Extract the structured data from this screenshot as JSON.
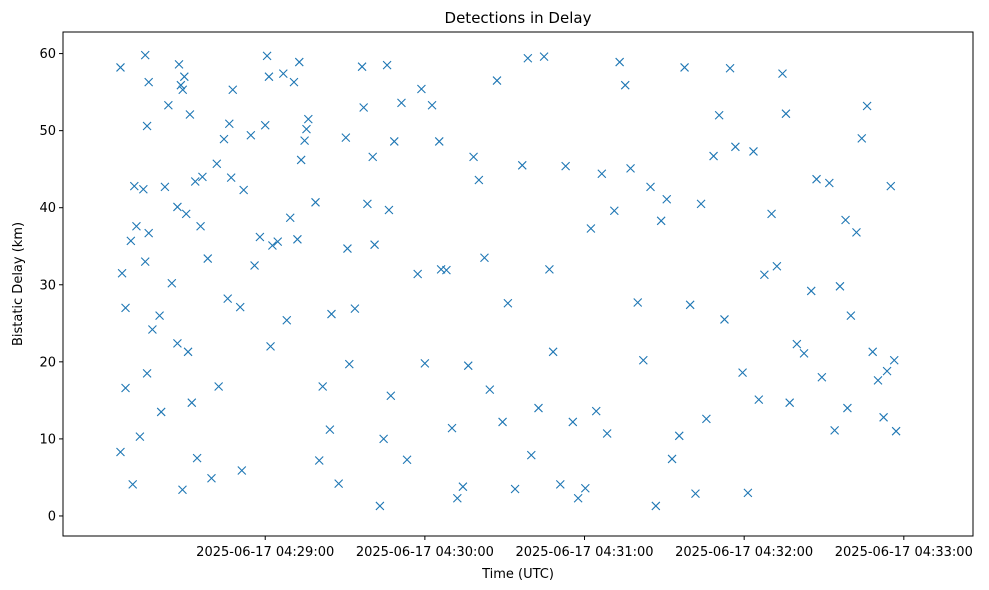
{
  "chart_data": {
    "type": "scatter",
    "title": "Detections in Delay",
    "xlabel": "Time (UTC)",
    "ylabel": "Bistatic Delay (km)",
    "marker": "x",
    "color": "#1f77b4",
    "grid": false,
    "xlim": [
      "2025-06-17T04:27:44",
      "2025-06-17T04:33:26"
    ],
    "ylim": [
      -2.6,
      62.8
    ],
    "x_ticks": [
      {
        "t": "2025-06-17T04:29:00",
        "label": "2025-06-17 04:29:00"
      },
      {
        "t": "2025-06-17T04:30:00",
        "label": "2025-06-17 04:30:00"
      },
      {
        "t": "2025-06-17T04:31:00",
        "label": "2025-06-17 04:31:00"
      },
      {
        "t": "2025-06-17T04:32:00",
        "label": "2025-06-17 04:32:00"
      },
      {
        "t": "2025-06-17T04:33:00",
        "label": "2025-06-17 04:33:00"
      }
    ],
    "y_ticks": [
      0,
      10,
      20,
      30,
      40,
      50,
      60
    ],
    "points": [
      [
        "2025-06-17T04:28:05.6",
        58.2
      ],
      [
        "2025-06-17T04:28:06.2",
        31.5
      ],
      [
        "2025-06-17T04:28:07.5",
        27.0
      ],
      [
        "2025-06-17T04:28:09.5",
        35.7
      ],
      [
        "2025-06-17T04:28:11.6",
        37.6
      ],
      [
        "2025-06-17T04:28:05.6",
        8.3
      ],
      [
        "2025-06-17T04:28:07.5",
        16.6
      ],
      [
        "2025-06-17T04:28:10.2",
        4.1
      ],
      [
        "2025-06-17T04:28:12.9",
        10.3
      ],
      [
        "2025-06-17T04:28:15.6",
        18.5
      ],
      [
        "2025-06-17T04:28:10.8",
        42.8
      ],
      [
        "2025-06-17T04:28:14.2",
        42.4
      ],
      [
        "2025-06-17T04:28:14.9",
        33.0
      ],
      [
        "2025-06-17T04:28:16.2",
        36.7
      ],
      [
        "2025-06-17T04:28:17.6",
        24.2
      ],
      [
        "2025-06-17T04:28:14.9",
        59.8
      ],
      [
        "2025-06-17T04:28:16.2",
        56.3
      ],
      [
        "2025-06-17T04:28:15.6",
        50.6
      ],
      [
        "2025-06-17T04:28:20.3",
        26.0
      ],
      [
        "2025-06-17T04:28:20.9",
        13.5
      ],
      [
        "2025-06-17T04:28:22.3",
        42.7
      ],
      [
        "2025-06-17T04:28:23.6",
        53.3
      ],
      [
        "2025-06-17T04:28:24.9",
        30.2
      ],
      [
        "2025-06-17T04:28:27.0",
        22.4
      ],
      [
        "2025-06-17T04:28:27.6",
        58.6
      ],
      [
        "2025-06-17T04:28:28.3",
        55.9
      ],
      [
        "2025-06-17T04:28:29.0",
        55.3
      ],
      [
        "2025-06-17T04:28:29.6",
        57.0
      ],
      [
        "2025-06-17T04:28:31.7",
        52.1
      ],
      [
        "2025-06-17T04:28:32.4",
        14.7
      ],
      [
        "2025-06-17T04:28:27.0",
        40.1
      ],
      [
        "2025-06-17T04:28:28.9",
        3.4
      ],
      [
        "2025-06-17T04:28:30.3",
        39.2
      ],
      [
        "2025-06-17T04:28:31.0",
        21.3
      ],
      [
        "2025-06-17T04:28:33.7",
        43.4
      ],
      [
        "2025-06-17T04:28:34.4",
        7.5
      ],
      [
        "2025-06-17T04:28:35.7",
        37.6
      ],
      [
        "2025-06-17T04:28:36.4",
        44.0
      ],
      [
        "2025-06-17T04:28:38.4",
        33.4
      ],
      [
        "2025-06-17T04:28:39.8",
        4.9
      ],
      [
        "2025-06-17T04:28:41.8",
        45.7
      ],
      [
        "2025-06-17T04:28:42.5",
        16.8
      ],
      [
        "2025-06-17T04:28:44.5",
        48.9
      ],
      [
        "2025-06-17T04:28:45.9",
        28.2
      ],
      [
        "2025-06-17T04:28:46.5",
        50.9
      ],
      [
        "2025-06-17T04:28:47.2",
        43.9
      ],
      [
        "2025-06-17T04:28:47.8",
        55.3
      ],
      [
        "2025-06-17T04:28:50.6",
        27.1
      ],
      [
        "2025-06-17T04:28:51.2",
        5.9
      ],
      [
        "2025-06-17T04:28:51.9",
        42.3
      ],
      [
        "2025-06-17T04:28:54.6",
        49.4
      ],
      [
        "2025-06-17T04:28:56.0",
        32.5
      ],
      [
        "2025-06-17T04:28:58.0",
        36.2
      ],
      [
        "2025-06-17T04:29:00.7",
        59.7
      ],
      [
        "2025-06-17T04:29:00.0",
        50.7
      ],
      [
        "2025-06-17T04:29:01.4",
        57.0
      ],
      [
        "2025-06-17T04:29:02.0",
        22.0
      ],
      [
        "2025-06-17T04:29:02.7",
        35.1
      ],
      [
        "2025-06-17T04:29:04.7",
        35.6
      ],
      [
        "2025-06-17T04:29:06.8",
        57.4
      ],
      [
        "2025-06-17T04:29:08.1",
        25.4
      ],
      [
        "2025-06-17T04:29:09.4",
        38.7
      ],
      [
        "2025-06-17T04:29:10.8",
        56.3
      ],
      [
        "2025-06-17T04:29:12.1",
        35.9
      ],
      [
        "2025-06-17T04:29:12.8",
        58.9
      ],
      [
        "2025-06-17T04:29:13.5",
        46.2
      ],
      [
        "2025-06-17T04:29:14.8",
        48.7
      ],
      [
        "2025-06-17T04:29:15.5",
        50.2
      ],
      [
        "2025-06-17T04:29:16.2",
        51.5
      ],
      [
        "2025-06-17T04:29:18.9",
        40.7
      ],
      [
        "2025-06-17T04:29:20.3",
        7.2
      ],
      [
        "2025-06-17T04:29:21.6",
        16.8
      ],
      [
        "2025-06-17T04:29:24.3",
        11.2
      ],
      [
        "2025-06-17T04:29:24.9",
        26.2
      ],
      [
        "2025-06-17T04:29:27.6",
        4.2
      ],
      [
        "2025-06-17T04:29:30.3",
        49.1
      ],
      [
        "2025-06-17T04:29:30.9",
        34.7
      ],
      [
        "2025-06-17T04:29:31.6",
        19.7
      ],
      [
        "2025-06-17T04:29:33.7",
        26.9
      ],
      [
        "2025-06-17T04:29:36.4",
        58.3
      ],
      [
        "2025-06-17T04:29:37.0",
        53.0
      ],
      [
        "2025-06-17T04:29:38.4",
        40.5
      ],
      [
        "2025-06-17T04:29:40.4",
        46.6
      ],
      [
        "2025-06-17T04:29:41.1",
        35.2
      ],
      [
        "2025-06-17T04:29:43.1",
        1.3
      ],
      [
        "2025-06-17T04:29:44.5",
        10.0
      ],
      [
        "2025-06-17T04:29:45.8",
        58.5
      ],
      [
        "2025-06-17T04:29:46.5",
        39.7
      ],
      [
        "2025-06-17T04:29:47.2",
        15.6
      ],
      [
        "2025-06-17T04:29:48.5",
        48.6
      ],
      [
        "2025-06-17T04:29:51.2",
        53.6
      ],
      [
        "2025-06-17T04:29:53.3",
        7.3
      ],
      [
        "2025-06-17T04:29:57.3",
        31.4
      ],
      [
        "2025-06-17T04:29:58.7",
        55.4
      ],
      [
        "2025-06-17T04:30:00.0",
        19.8
      ],
      [
        "2025-06-17T04:30:02.7",
        53.3
      ],
      [
        "2025-06-17T04:30:05.4",
        48.6
      ],
      [
        "2025-06-17T04:30:06.1",
        32.0
      ],
      [
        "2025-06-17T04:30:08.1",
        31.9
      ],
      [
        "2025-06-17T04:30:10.2",
        11.4
      ],
      [
        "2025-06-17T04:30:12.2",
        2.3
      ],
      [
        "2025-06-17T04:30:14.3",
        3.8
      ],
      [
        "2025-06-17T04:30:16.3",
        19.5
      ],
      [
        "2025-06-17T04:30:18.3",
        46.6
      ],
      [
        "2025-06-17T04:30:20.3",
        43.6
      ],
      [
        "2025-06-17T04:30:22.4",
        33.5
      ],
      [
        "2025-06-17T04:30:24.4",
        16.4
      ],
      [
        "2025-06-17T04:30:27.1",
        56.5
      ],
      [
        "2025-06-17T04:30:29.2",
        12.2
      ],
      [
        "2025-06-17T04:30:31.2",
        27.6
      ],
      [
        "2025-06-17T04:30:33.9",
        3.5
      ],
      [
        "2025-06-17T04:30:36.6",
        45.5
      ],
      [
        "2025-06-17T04:30:38.7",
        59.4
      ],
      [
        "2025-06-17T04:30:40.0",
        7.9
      ],
      [
        "2025-06-17T04:30:42.7",
        14.0
      ],
      [
        "2025-06-17T04:30:44.8",
        59.6
      ],
      [
        "2025-06-17T04:30:46.8",
        32.0
      ],
      [
        "2025-06-17T04:30:48.2",
        21.3
      ],
      [
        "2025-06-17T04:30:50.9",
        4.1
      ],
      [
        "2025-06-17T04:30:52.9",
        45.4
      ],
      [
        "2025-06-17T04:30:55.6",
        12.2
      ],
      [
        "2025-06-17T04:30:57.6",
        2.3
      ],
      [
        "2025-06-17T04:31:00.3",
        3.6
      ],
      [
        "2025-06-17T04:31:02.4",
        37.3
      ],
      [
        "2025-06-17T04:31:04.4",
        13.6
      ],
      [
        "2025-06-17T04:31:06.5",
        44.4
      ],
      [
        "2025-06-17T04:31:08.5",
        10.7
      ],
      [
        "2025-06-17T04:31:11.2",
        39.6
      ],
      [
        "2025-06-17T04:31:13.2",
        58.9
      ],
      [
        "2025-06-17T04:31:15.3",
        55.9
      ],
      [
        "2025-06-17T04:31:17.3",
        45.1
      ],
      [
        "2025-06-17T04:31:20.0",
        27.7
      ],
      [
        "2025-06-17T04:31:22.1",
        20.2
      ],
      [
        "2025-06-17T04:31:24.8",
        42.7
      ],
      [
        "2025-06-17T04:31:26.8",
        1.3
      ],
      [
        "2025-06-17T04:31:28.8",
        38.3
      ],
      [
        "2025-06-17T04:31:30.9",
        41.1
      ],
      [
        "2025-06-17T04:31:32.9",
        7.4
      ],
      [
        "2025-06-17T04:31:35.6",
        10.4
      ],
      [
        "2025-06-17T04:31:37.6",
        58.2
      ],
      [
        "2025-06-17T04:31:39.7",
        27.4
      ],
      [
        "2025-06-17T04:31:41.7",
        2.9
      ],
      [
        "2025-06-17T04:31:43.8",
        40.5
      ],
      [
        "2025-06-17T04:31:45.8",
        12.6
      ],
      [
        "2025-06-17T04:31:48.5",
        46.7
      ],
      [
        "2025-06-17T04:31:50.6",
        52.0
      ],
      [
        "2025-06-17T04:31:52.6",
        25.5
      ],
      [
        "2025-06-17T04:31:54.7",
        58.1
      ],
      [
        "2025-06-17T04:31:56.7",
        47.9
      ],
      [
        "2025-06-17T04:31:59.4",
        18.6
      ],
      [
        "2025-06-17T04:32:01.4",
        3.0
      ],
      [
        "2025-06-17T04:32:03.5",
        47.3
      ],
      [
        "2025-06-17T04:32:05.5",
        15.1
      ],
      [
        "2025-06-17T04:32:07.6",
        31.3
      ],
      [
        "2025-06-17T04:32:10.3",
        39.2
      ],
      [
        "2025-06-17T04:32:12.3",
        32.4
      ],
      [
        "2025-06-17T04:32:14.4",
        57.4
      ],
      [
        "2025-06-17T04:32:15.7",
        52.2
      ],
      [
        "2025-06-17T04:32:17.1",
        14.7
      ],
      [
        "2025-06-17T04:32:19.8",
        22.3
      ],
      [
        "2025-06-17T04:32:22.5",
        21.1
      ],
      [
        "2025-06-17T04:32:25.2",
        29.2
      ],
      [
        "2025-06-17T04:32:27.2",
        43.7
      ],
      [
        "2025-06-17T04:32:29.2",
        18.0
      ],
      [
        "2025-06-17T04:32:32.0",
        43.2
      ],
      [
        "2025-06-17T04:32:34.0",
        11.1
      ],
      [
        "2025-06-17T04:32:36.0",
        29.8
      ],
      [
        "2025-06-17T04:32:38.1",
        38.4
      ],
      [
        "2025-06-17T04:32:40.1",
        26.0
      ],
      [
        "2025-06-17T04:32:42.2",
        36.8
      ],
      [
        "2025-06-17T04:32:44.2",
        49.0
      ],
      [
        "2025-06-17T04:32:46.2",
        53.2
      ],
      [
        "2025-06-17T04:32:48.3",
        21.3
      ],
      [
        "2025-06-17T04:32:50.3",
        17.6
      ],
      [
        "2025-06-17T04:32:52.4",
        12.8
      ],
      [
        "2025-06-17T04:32:53.7",
        18.8
      ],
      [
        "2025-06-17T04:32:55.1",
        42.8
      ],
      [
        "2025-06-17T04:32:56.4",
        20.2
      ],
      [
        "2025-06-17T04:32:57.1",
        11.0
      ],
      [
        "2025-06-17T04:32:38.8",
        14.0
      ]
    ]
  }
}
